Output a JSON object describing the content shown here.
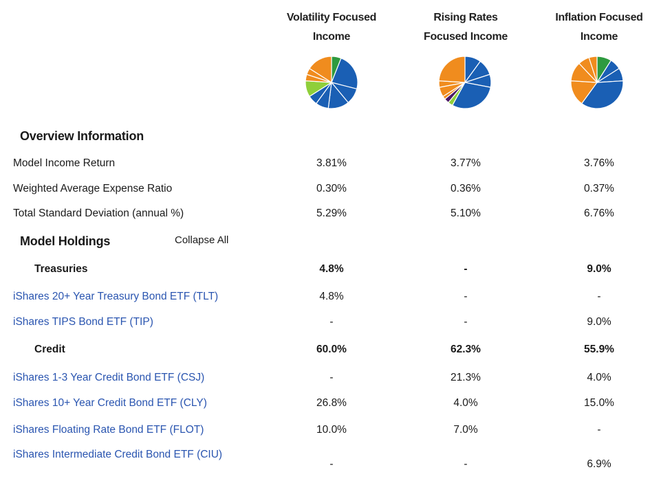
{
  "columns": [
    {
      "line1": "Volatility Focused",
      "line2": "Income"
    },
    {
      "line1": "Rising Rates",
      "line2": "Focused Income"
    },
    {
      "line1": "Inflation Focused",
      "line2": "Income"
    }
  ],
  "colors": {
    "blue": "#1a5fb4",
    "orange": "#f08c1e",
    "green": "#2e9a3f",
    "lightgreen": "#8fcf3a",
    "purple": "#4b1a66",
    "link": "#2a55b0"
  },
  "pies": [
    [
      {
        "value": 6,
        "color": "#2e9a3f"
      },
      {
        "value": 23,
        "color": "#1a5fb4"
      },
      {
        "value": 10,
        "color": "#1a5fb4"
      },
      {
        "value": 13,
        "color": "#1a5fb4"
      },
      {
        "value": 8,
        "color": "#1a5fb4"
      },
      {
        "value": 6,
        "color": "#1a5fb4"
      },
      {
        "value": 10,
        "color": "#8fcf3a"
      },
      {
        "value": 4,
        "color": "#f08c1e"
      },
      {
        "value": 4,
        "color": "#f08c1e"
      },
      {
        "value": 16,
        "color": "#f08c1e"
      }
    ],
    [
      {
        "value": 10,
        "color": "#1a5fb4"
      },
      {
        "value": 10,
        "color": "#1a5fb4"
      },
      {
        "value": 8,
        "color": "#1a5fb4"
      },
      {
        "value": 30,
        "color": "#1a5fb4"
      },
      {
        "value": 3,
        "color": "#8fcf3a"
      },
      {
        "value": 3,
        "color": "#4b1a66"
      },
      {
        "value": 2,
        "color": "#f08c1e"
      },
      {
        "value": 6,
        "color": "#f08c1e"
      },
      {
        "value": 4,
        "color": "#f08c1e"
      },
      {
        "value": 24,
        "color": "#f08c1e"
      }
    ],
    [
      {
        "value": 9,
        "color": "#2e9a3f"
      },
      {
        "value": 7,
        "color": "#1a5fb4"
      },
      {
        "value": 8,
        "color": "#1a5fb4"
      },
      {
        "value": 36,
        "color": "#1a5fb4"
      },
      {
        "value": 16,
        "color": "#f08c1e"
      },
      {
        "value": 12,
        "color": "#f08c1e"
      },
      {
        "value": 7,
        "color": "#f08c1e"
      },
      {
        "value": 5,
        "color": "#f08c1e"
      }
    ]
  ],
  "overview": {
    "title": "Overview Information",
    "rows": [
      {
        "label": "Model Income Return",
        "values": [
          "3.81%",
          "3.77%",
          "3.76%"
        ]
      },
      {
        "label": "Weighted Average Expense Ratio",
        "values": [
          "0.30%",
          "0.36%",
          "0.37%"
        ]
      },
      {
        "label": "Total Standard Deviation (annual %)",
        "values": [
          "5.29%",
          "5.10%",
          "6.76%"
        ]
      }
    ]
  },
  "holdings": {
    "title": "Model Holdings",
    "collapse_label": "Collapse All",
    "rows": [
      {
        "type": "group",
        "label": "Treasuries",
        "values": [
          "4.8%",
          "-",
          "9.0%"
        ]
      },
      {
        "type": "item",
        "label": "iShares 20+ Year Treasury Bond ETF (TLT)",
        "values": [
          "4.8%",
          "-",
          "-"
        ]
      },
      {
        "type": "item",
        "label": "iShares TIPS Bond ETF (TIP)",
        "values": [
          "-",
          "-",
          "9.0%"
        ]
      },
      {
        "type": "group",
        "label": "Credit",
        "values": [
          "60.0%",
          "62.3%",
          "55.9%"
        ]
      },
      {
        "type": "item",
        "label": "iShares 1-3 Year Credit Bond ETF (CSJ)",
        "values": [
          "-",
          "21.3%",
          "4.0%"
        ]
      },
      {
        "type": "item",
        "label": "iShares 10+ Year Credit Bond ETF (CLY)",
        "values": [
          "26.8%",
          "4.0%",
          "15.0%"
        ]
      },
      {
        "type": "item",
        "label": "iShares Floating Rate Bond ETF (FLOT)",
        "values": [
          "10.0%",
          "7.0%",
          "-"
        ]
      },
      {
        "type": "item",
        "label": "iShares Intermediate Credit Bond ETF (CIU)",
        "values": [
          "-",
          "-",
          "6.9%"
        ]
      }
    ]
  }
}
